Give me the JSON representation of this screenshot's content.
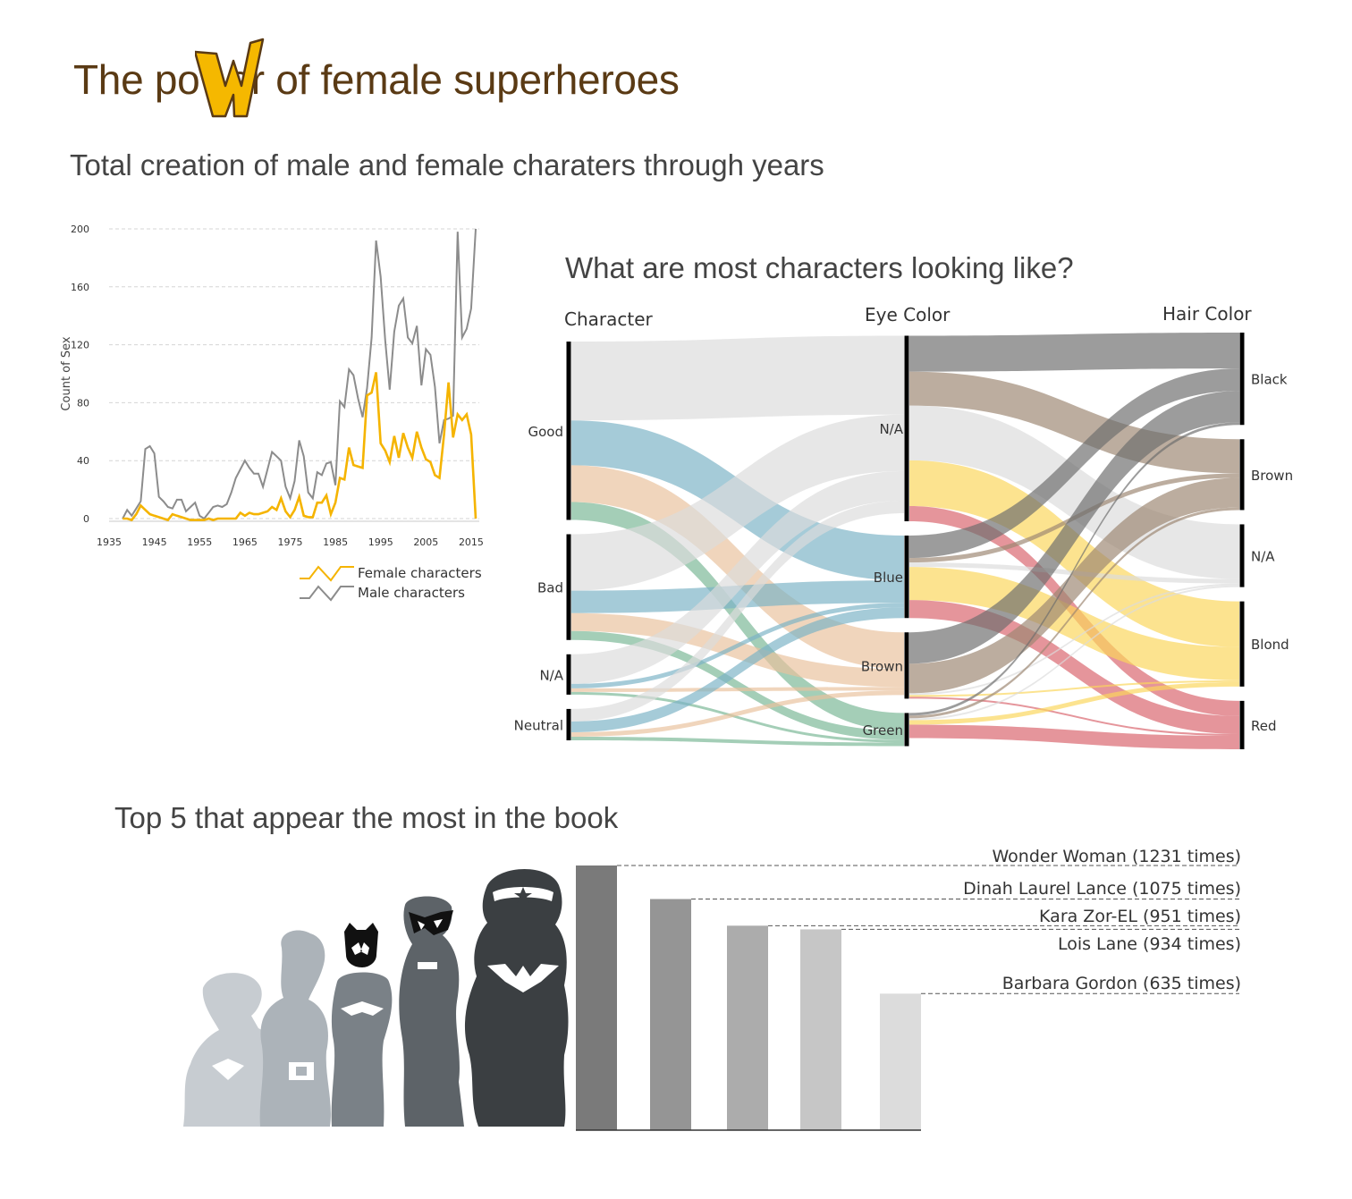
{
  "header": {
    "title_before": "The po",
    "title_after": "er of female superheroes",
    "logo_letter": "W"
  },
  "colors": {
    "female": "#f5b400",
    "male": "#8c8c8c",
    "title": "#5a3a14",
    "eye_na": "#dcdcdc",
    "eye_blue": "#7ab2c6",
    "eye_brown": "#e9c19c",
    "eye_green": "#79b795",
    "hair_black": "#6d6d6d",
    "hair_brown": "#9c8671",
    "hair_na": "#dcdcdc",
    "hair_blond": "#fbd65a",
    "hair_red": "#d9636c"
  },
  "line_section": {
    "title": "Total creation of male and female charaters through years"
  },
  "sankey_section": {
    "title": "What are most characters looking like?"
  },
  "top5_section": {
    "title": "Top 5 that appear the most in the book"
  },
  "chart_data": [
    {
      "type": "line",
      "ylabel": "Count of Sex",
      "xlabel": "",
      "xlim": [
        1935,
        2016
      ],
      "ylim": [
        0,
        200
      ],
      "yticks": [
        0,
        40,
        80,
        120,
        160,
        200
      ],
      "xticks": [
        1935,
        1945,
        1955,
        1965,
        1975,
        1985,
        1995,
        2005,
        2015
      ],
      "grid": true,
      "legend": "bottom-right",
      "x": [
        1938,
        1939,
        1940,
        1941,
        1942,
        1943,
        1944,
        1945,
        1946,
        1947,
        1948,
        1949,
        1950,
        1951,
        1952,
        1953,
        1954,
        1955,
        1956,
        1957,
        1958,
        1959,
        1960,
        1961,
        1962,
        1963,
        1964,
        1965,
        1966,
        1967,
        1968,
        1969,
        1970,
        1971,
        1972,
        1973,
        1974,
        1975,
        1976,
        1977,
        1978,
        1979,
        1980,
        1981,
        1982,
        1983,
        1984,
        1985,
        1986,
        1987,
        1988,
        1989,
        1990,
        1991,
        1992,
        1993,
        1994,
        1995,
        1996,
        1997,
        1998,
        1999,
        2000,
        2001,
        2002,
        2003,
        2004,
        2005,
        2006,
        2007,
        2008,
        2009,
        2010,
        2011,
        2012,
        2013,
        2014,
        2015,
        2016
      ],
      "series": [
        {
          "name": "Female characters",
          "values": [
            0,
            0,
            -1,
            3,
            9,
            6,
            3,
            2,
            1,
            0,
            -1,
            3,
            2,
            1,
            0,
            -1,
            -1,
            -1,
            -1,
            0,
            -1,
            0,
            0,
            0,
            0,
            0,
            4,
            2,
            4,
            3,
            3,
            4,
            5,
            8,
            6,
            14,
            5,
            1,
            6,
            15,
            2,
            1,
            1,
            11,
            11,
            16,
            3,
            11,
            28,
            27,
            49,
            37,
            36,
            35,
            85,
            87,
            101,
            52,
            47,
            39,
            57,
            42,
            59,
            49,
            42,
            60,
            49,
            41,
            39,
            30,
            28,
            58,
            94,
            56,
            72,
            68,
            72,
            58,
            0
          ]
        },
        {
          "name": "Male characters",
          "values": [
            0,
            6,
            2,
            7,
            12,
            48,
            50,
            45,
            15,
            12,
            8,
            7,
            13,
            13,
            5,
            8,
            11,
            2,
            0,
            4,
            8,
            9,
            8,
            10,
            18,
            28,
            34,
            40,
            35,
            31,
            31,
            22,
            34,
            46,
            43,
            40,
            22,
            14,
            26,
            54,
            43,
            18,
            14,
            32,
            30,
            38,
            39,
            23,
            81,
            77,
            103,
            99,
            83,
            70,
            90,
            125,
            192,
            167,
            123,
            89,
            129,
            147,
            152,
            125,
            121,
            133,
            92,
            117,
            113,
            91,
            52,
            68,
            69,
            71,
            198,
            125,
            131,
            145,
            200
          ]
        }
      ]
    },
    {
      "type": "sankey",
      "title": "",
      "columns": [
        "Character",
        "Eye Color",
        "Hair Color"
      ],
      "nodes": {
        "Character": [
          "Good",
          "Bad",
          "N/A",
          "Neutral"
        ],
        "Eye Color": [
          "N/A",
          "Blue",
          "Brown",
          "Green"
        ],
        "Hair Color": [
          "Black",
          "Brown",
          "N/A",
          "Blond",
          "Red"
        ]
      },
      "links": [
        {
          "source": "Good",
          "target": "N/A",
          "value": 88
        },
        {
          "source": "Good",
          "target": "Blue",
          "value": 50
        },
        {
          "source": "Good",
          "target": "Brown",
          "value": 41
        },
        {
          "source": "Good",
          "target": "Green",
          "value": 20
        },
        {
          "source": "Bad",
          "target": "N/A",
          "value": 63
        },
        {
          "source": "Bad",
          "target": "Blue",
          "value": 25
        },
        {
          "source": "Bad",
          "target": "Brown",
          "value": 20
        },
        {
          "source": "Bad",
          "target": "Green",
          "value": 10
        },
        {
          "source": "N/A",
          "target": "N/A",
          "value": 33
        },
        {
          "source": "N/A",
          "target": "Blue",
          "value": 5
        },
        {
          "source": "N/A",
          "target": "Brown",
          "value": 4
        },
        {
          "source": "N/A",
          "target": "Green",
          "value": 3
        },
        {
          "source": "Neutral",
          "target": "N/A",
          "value": 14
        },
        {
          "source": "Neutral",
          "target": "Blue",
          "value": 12
        },
        {
          "source": "Neutral",
          "target": "Brown",
          "value": 5
        },
        {
          "source": "Neutral",
          "target": "Green",
          "value": 4
        },
        {
          "source": "N/A",
          "target": "Black",
          "value": 40
        },
        {
          "source": "N/A",
          "target": "Brown",
          "value": 38
        },
        {
          "source": "N/A",
          "target": "N/A",
          "value": 61
        },
        {
          "source": "N/A",
          "target": "Blond",
          "value": 51
        },
        {
          "source": "N/A",
          "target": "Red",
          "value": 17
        },
        {
          "source": "Blue",
          "target": "Black",
          "value": 25
        },
        {
          "source": "Blue",
          "target": "Brown",
          "value": 5
        },
        {
          "source": "Blue",
          "target": "N/A",
          "value": 5
        },
        {
          "source": "Blue",
          "target": "Blond",
          "value": 37
        },
        {
          "source": "Blue",
          "target": "Red",
          "value": 20
        },
        {
          "source": "Brown",
          "target": "Black",
          "value": 35
        },
        {
          "source": "Brown",
          "target": "Brown",
          "value": 33
        },
        {
          "source": "Brown",
          "target": "N/A",
          "value": 2
        },
        {
          "source": "Brown",
          "target": "Blond",
          "value": 2
        },
        {
          "source": "Brown",
          "target": "Red",
          "value": 2
        },
        {
          "source": "Green",
          "target": "Black",
          "value": 3
        },
        {
          "source": "Green",
          "target": "Brown",
          "value": 3
        },
        {
          "source": "Green",
          "target": "N/A",
          "value": 2
        },
        {
          "source": "Green",
          "target": "Blond",
          "value": 5
        },
        {
          "source": "Green",
          "target": "Red",
          "value": 15
        }
      ]
    },
    {
      "type": "bar",
      "title": "",
      "categories": [
        "Wonder Woman (1231 times)",
        "Dinah Laurel Lance (1075 times)",
        "Kara Zor-EL (951 times)",
        "Lois Lane (934 times)",
        "Barbara Gordon (635 times)"
      ],
      "values": [
        1231,
        1075,
        951,
        934,
        635
      ],
      "ylim": [
        0,
        1231
      ],
      "bar_colors": [
        "#7a7a7a",
        "#959595",
        "#acacac",
        "#c6c6c6",
        "#dcdcdc"
      ]
    }
  ]
}
